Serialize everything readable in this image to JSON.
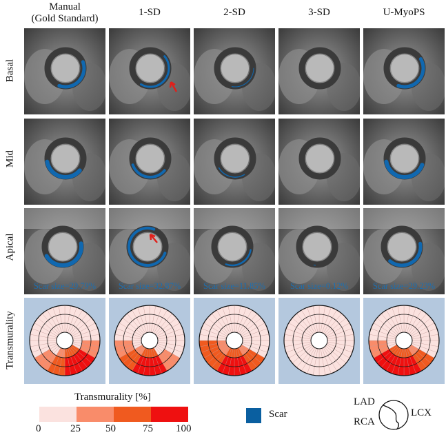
{
  "columns": [
    "Manual\n(Gold Standard)",
    "1-SD",
    "2-SD",
    "3-SD",
    "U-MyoPS"
  ],
  "rows": [
    "Basal",
    "Mid",
    "Apical",
    "Transmurality"
  ],
  "scar_sizes": [
    "Scar size=29.79%",
    "Scar size=32.87%",
    "Scar size=11.85%",
    "Scar size=0.12%",
    "Scar size=29.23%"
  ],
  "legend": {
    "title": "Transmurality [%]",
    "ticks": [
      "0",
      "25",
      "50",
      "75",
      "100"
    ],
    "colors": [
      "#fbe2df",
      "#f98c6a",
      "#f05a1f",
      "#ef1010"
    ],
    "scar_label": "Scar",
    "scar_color": "#0a5fa0"
  },
  "aha_labels": {
    "lad": "LAD",
    "rca": "RCA",
    "lcx": "LCX"
  },
  "colors": {
    "bullseye_bg": "#b4c8de",
    "scar_overlay": "#1068b0",
    "arrow": "#e0201b"
  }
}
